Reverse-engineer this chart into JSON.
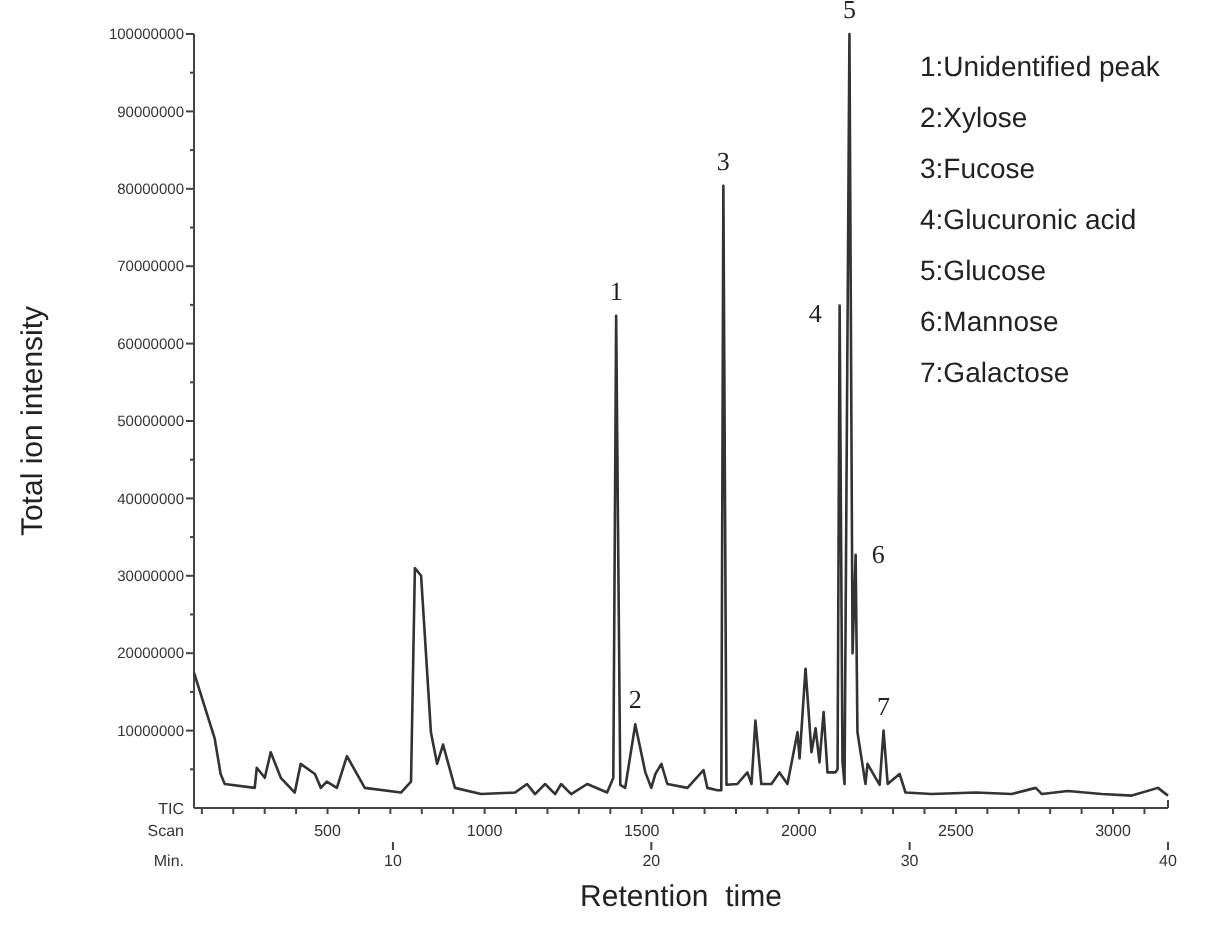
{
  "chart_data": {
    "type": "line",
    "xlabel": "Retention  time",
    "ylabel": "Total ion intensity",
    "x2label": "Scan",
    "xlim": [
      2.3,
      40
    ],
    "xticks": [
      10,
      20,
      30,
      40
    ],
    "x2lim": [
      75,
      3175
    ],
    "x2ticks": [
      {
        "value": 100,
        "label": null
      },
      {
        "value": 200,
        "label": null
      },
      {
        "value": 300,
        "label": null
      },
      {
        "value": 400,
        "label": null
      },
      500,
      {
        "value": 600,
        "label": null
      },
      {
        "value": 700,
        "label": null
      },
      {
        "value": 800,
        "label": null
      },
      {
        "value": 900,
        "label": null
      },
      1000,
      {
        "value": 1100,
        "label": null
      },
      {
        "value": 1200,
        "label": null
      },
      {
        "value": 1300,
        "label": null
      },
      {
        "value": 1400,
        "label": null
      },
      1500,
      {
        "value": 1600,
        "label": null
      },
      {
        "value": 1700,
        "label": null
      },
      {
        "value": 1800,
        "label": null
      },
      {
        "value": 1900,
        "label": null
      },
      2000,
      {
        "value": 2100,
        "label": null
      },
      {
        "value": 2200,
        "label": null
      },
      {
        "value": 2300,
        "label": null
      },
      {
        "value": 2400,
        "label": null
      },
      2500,
      {
        "value": 2600,
        "label": null
      },
      {
        "value": 2700,
        "label": null
      },
      {
        "value": 2800,
        "label": null
      },
      {
        "value": 2900,
        "label": null
      },
      3000,
      {
        "value": 3100,
        "label": null
      }
    ],
    "ylim": [
      0,
      100000000
    ],
    "yticks": [
      {
        "value": 5000000,
        "label": null
      },
      10000000,
      {
        "value": 15000000,
        "label": null
      },
      20000000,
      {
        "value": 25000000,
        "label": null
      },
      30000000,
      {
        "value": 35000000,
        "label": null
      },
      40000000,
      {
        "value": 45000000,
        "label": null
      },
      50000000,
      {
        "value": 55000000,
        "label": null
      },
      60000000,
      {
        "value": 65000000,
        "label": null
      },
      70000000,
      {
        "value": 75000000,
        "label": null
      },
      80000000,
      {
        "value": 85000000,
        "label": null
      },
      90000000,
      {
        "value": 95000000,
        "label": null
      },
      100000000
    ],
    "grid": false,
    "marker": "none",
    "line_style": "solid",
    "series": [
      {
        "color": "#333333",
        "x": [
          2.3,
          3.1,
          3.33,
          3.49,
          4.65,
          4.73,
          5.04,
          5.27,
          5.66,
          6.2,
          6.43,
          6.98,
          7.21,
          7.44,
          7.83,
          8.22,
          8.91,
          10.31,
          10.7,
          10.85,
          11.09,
          11.47,
          11.71,
          11.94,
          12.4,
          13.41,
          14.73,
          15.19,
          15.5,
          15.89,
          16.28,
          16.51,
          16.9,
          17.52,
          18.29,
          18.53,
          18.64,
          18.8,
          18.99,
          19.38,
          19.77,
          20.0,
          20.16,
          20.39,
          20.62,
          21.4,
          22.02,
          22.17,
          22.56,
          22.71,
          22.79,
          22.91,
          23.33,
          23.72,
          23.88,
          24.03,
          24.26,
          24.65,
          24.96,
          25.27,
          25.66,
          25.74,
          25.97,
          26.2,
          26.36,
          26.51,
          26.67,
          26.82,
          27.13,
          27.21,
          27.29,
          27.4,
          27.48,
          27.67,
          27.79,
          27.91,
          27.98,
          28.29,
          28.37,
          28.68,
          28.84,
          28.99,
          29.15,
          29.61,
          29.84,
          30.85,
          32.56,
          33.95,
          34.88,
          35.12,
          36.12,
          37.44,
          38.6,
          39.61,
          40
        ],
        "values": [
          17500000,
          9000000,
          4400000,
          3100000,
          2600000,
          5200000,
          3900000,
          7200000,
          3900000,
          2000000,
          5700000,
          4400000,
          2600000,
          3400000,
          2600000,
          6700000,
          2600000,
          2000000,
          3400000,
          31000000,
          30000000,
          9800000,
          5700000,
          8200000,
          2600000,
          1800000,
          2000000,
          3100000,
          1800000,
          3100000,
          1800000,
          3100000,
          1800000,
          3100000,
          2000000,
          3900000,
          63600000,
          3000000,
          2600000,
          10800000,
          4600000,
          2600000,
          4400000,
          5700000,
          3100000,
          2600000,
          4900000,
          2600000,
          2300000,
          2300000,
          80400000,
          3000000,
          3100000,
          4600000,
          3100000,
          11300000,
          3100000,
          3100000,
          4600000,
          3100000,
          9800000,
          6400000,
          18000000,
          7200000,
          10300000,
          5900000,
          12400000,
          4600000,
          4600000,
          5000000,
          64900000,
          6000000,
          3100000,
          100000000,
          20000000,
          32700000,
          9800000,
          3100000,
          5700000,
          3900000,
          3000000,
          10000000,
          3100000,
          4400000,
          2000000,
          1800000,
          2000000,
          1800000,
          2600000,
          1800000,
          2200000,
          1800000,
          1600000,
          2600000,
          1600000
        ]
      }
    ],
    "annotations": [
      {
        "text": "1",
        "x": 18.64,
        "y": 63600000
      },
      {
        "text": "2",
        "x": 19.38,
        "y": 10800000
      },
      {
        "text": "3",
        "x": 22.79,
        "y": 80400000
      },
      {
        "text": "4",
        "x": 27.29,
        "y": 64900000
      },
      {
        "text": "5",
        "x": 27.67,
        "y": 100000000
      },
      {
        "text": "6",
        "x": 27.91,
        "y": 32700000
      },
      {
        "text": "7",
        "x": 28.99,
        "y": 10000000
      },
      "TIC",
      "Min.",
      "1:Unidentified peak",
      "2:Xylose",
      "3:Fucose",
      "4:Glucuronic acid",
      "5:Glucose",
      "6:Mannose",
      "7:Galactose"
    ]
  }
}
